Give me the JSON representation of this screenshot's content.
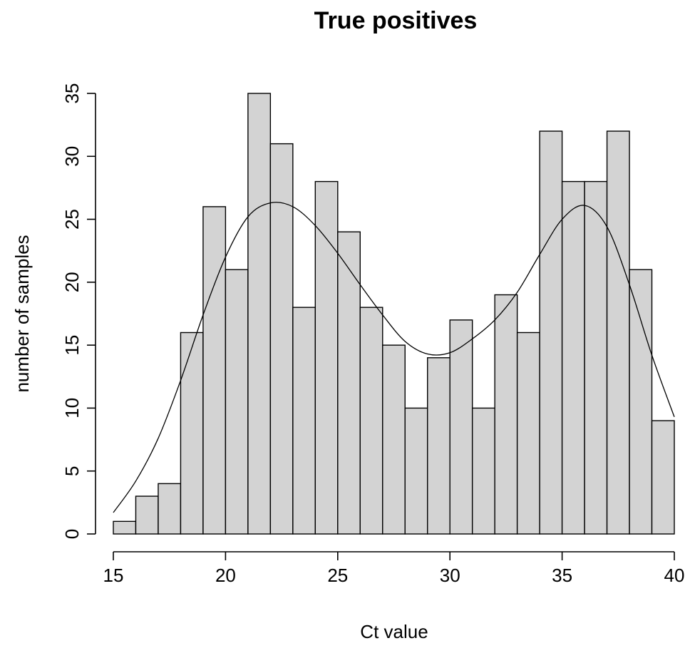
{
  "chart_data": {
    "type": "bar",
    "title": "True positives",
    "xlabel": "Ct value",
    "ylabel": "number of samples",
    "xlim": [
      15,
      40
    ],
    "ylim": [
      0,
      35
    ],
    "x_ticks": [
      15,
      20,
      25,
      30,
      35,
      40
    ],
    "y_ticks": [
      0,
      5,
      10,
      15,
      20,
      25,
      30,
      35
    ],
    "bin_edges": [
      15,
      16,
      17,
      18,
      19,
      20,
      21,
      22,
      23,
      24,
      25,
      26,
      27,
      28,
      29,
      30,
      31,
      32,
      33,
      34,
      35,
      36,
      37,
      38,
      39,
      40
    ],
    "values": [
      1,
      3,
      4,
      16,
      26,
      21,
      35,
      31,
      18,
      28,
      24,
      18,
      15,
      10,
      14,
      17,
      10,
      19,
      16,
      32,
      28,
      28,
      32,
      21,
      9
    ],
    "density_curve": {
      "x": [
        15,
        16,
        17,
        18,
        19,
        20,
        21,
        22,
        23,
        24,
        25,
        26,
        27,
        28,
        29,
        30,
        31,
        32,
        33,
        34,
        35,
        36,
        37,
        38,
        39,
        40
      ],
      "y": [
        1.7,
        4.2,
        7.6,
        12.2,
        17.4,
        22.0,
        25.2,
        26.3,
        26.0,
        24.5,
        22.3,
        19.8,
        17.4,
        15.3,
        14.3,
        14.4,
        15.5,
        17.0,
        19.2,
        22.2,
        25.0,
        26.1,
        24.4,
        19.8,
        14.2,
        9.3
      ]
    },
    "grid": false,
    "legend": null
  }
}
